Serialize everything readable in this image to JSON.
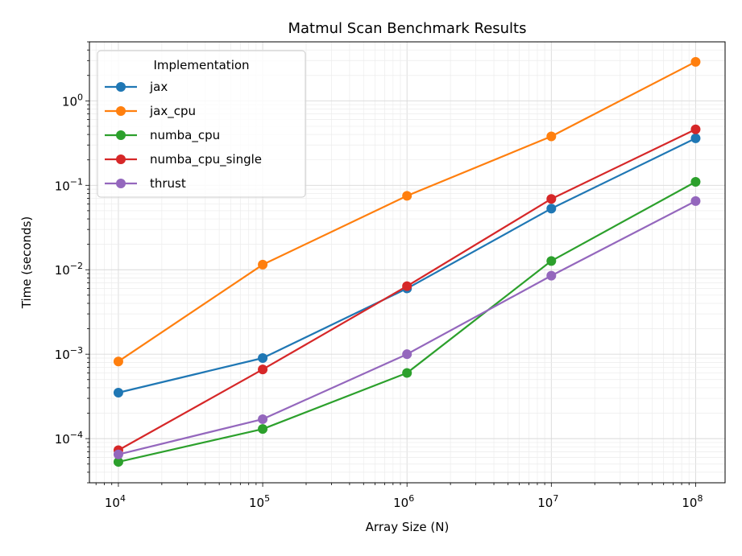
{
  "chart_data": {
    "type": "line",
    "title": "Matmul Scan Benchmark Results",
    "xlabel": "Array Size (N)",
    "ylabel": "Time (seconds)",
    "x_scale": "log",
    "y_scale": "log",
    "xlim": [
      6300,
      160000000
    ],
    "ylim": [
      3e-05,
      5
    ],
    "grid": true,
    "legend_title": "Implementation",
    "legend_position": "top-left",
    "x_ticks": [
      {
        "value": 10000,
        "base": "10",
        "exp": "4"
      },
      {
        "value": 100000,
        "base": "10",
        "exp": "5"
      },
      {
        "value": 1000000,
        "base": "10",
        "exp": "6"
      },
      {
        "value": 10000000,
        "base": "10",
        "exp": "7"
      },
      {
        "value": 100000000,
        "base": "10",
        "exp": "8"
      }
    ],
    "y_ticks": [
      {
        "value": 0.0001,
        "base": "10",
        "exp": "−4"
      },
      {
        "value": 0.001,
        "base": "10",
        "exp": "−3"
      },
      {
        "value": 0.01,
        "base": "10",
        "exp": "−2"
      },
      {
        "value": 0.1,
        "base": "10",
        "exp": "−1"
      },
      {
        "value": 1,
        "base": "10",
        "exp": "0"
      }
    ],
    "x": [
      10000,
      100000,
      1000000,
      10000000,
      100000000
    ],
    "series": [
      {
        "name": "jax",
        "color": "#1f77b4",
        "values": [
          0.00035,
          0.0009,
          0.006,
          0.053,
          0.36
        ]
      },
      {
        "name": "jax_cpu",
        "color": "#ff7f0e",
        "values": [
          0.00082,
          0.0115,
          0.075,
          0.38,
          2.9
        ]
      },
      {
        "name": "numba_cpu",
        "color": "#2ca02c",
        "values": [
          5.3e-05,
          0.00013,
          0.0006,
          0.0127,
          0.11
        ]
      },
      {
        "name": "numba_cpu_single",
        "color": "#d62728",
        "values": [
          7.3e-05,
          0.00066,
          0.0064,
          0.069,
          0.46
        ]
      },
      {
        "name": "thrust",
        "color": "#9467bd",
        "values": [
          6.5e-05,
          0.00017,
          0.001,
          0.0085,
          0.065
        ]
      }
    ]
  }
}
